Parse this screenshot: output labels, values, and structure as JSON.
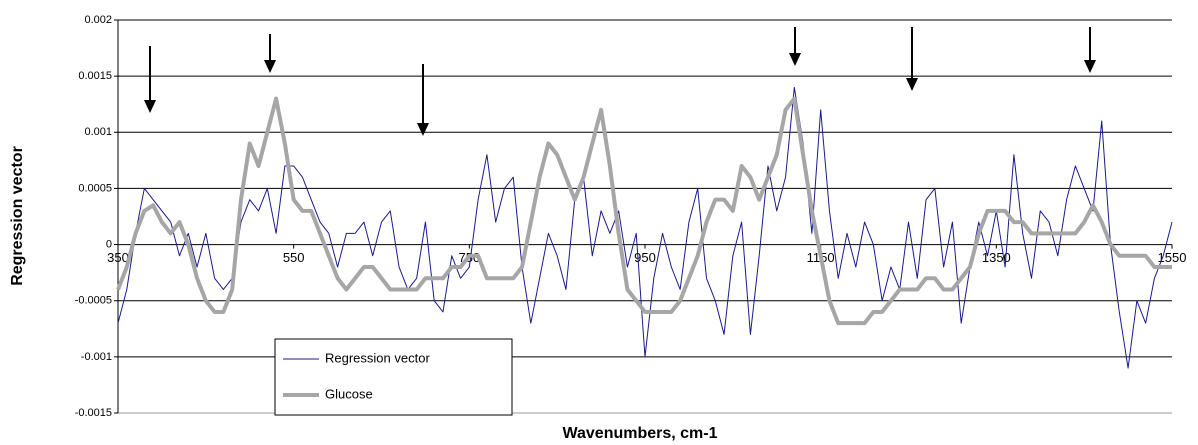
{
  "chart_data": {
    "type": "line",
    "x_label": "Wavenumbers, cm-1",
    "y_label": "Regression vector",
    "x": [
      350,
      360,
      370,
      380,
      390,
      400,
      410,
      420,
      430,
      440,
      450,
      460,
      470,
      480,
      490,
      500,
      510,
      520,
      530,
      540,
      550,
      560,
      570,
      580,
      590,
      600,
      610,
      620,
      630,
      640,
      650,
      660,
      670,
      680,
      690,
      700,
      710,
      720,
      730,
      740,
      750,
      760,
      770,
      780,
      790,
      800,
      810,
      820,
      830,
      840,
      850,
      860,
      870,
      880,
      890,
      900,
      910,
      920,
      930,
      940,
      950,
      960,
      970,
      980,
      990,
      1000,
      1010,
      1020,
      1030,
      1040,
      1050,
      1060,
      1070,
      1080,
      1090,
      1100,
      1110,
      1120,
      1130,
      1140,
      1150,
      1160,
      1170,
      1180,
      1190,
      1200,
      1210,
      1220,
      1230,
      1240,
      1250,
      1260,
      1270,
      1280,
      1290,
      1300,
      1310,
      1320,
      1330,
      1340,
      1350,
      1360,
      1370,
      1380,
      1390,
      1400,
      1410,
      1420,
      1430,
      1440,
      1450,
      1460,
      1470,
      1480,
      1490,
      1500,
      1510,
      1520,
      1530,
      1540,
      1550
    ],
    "series": [
      {
        "name": "Regression vector",
        "color": "#1a1a8c",
        "width": 1,
        "values": [
          -0.0007,
          -0.0004,
          0.0001,
          0.0005,
          0.0004,
          0.0003,
          0.0002,
          -0.0001,
          0.0001,
          -0.0002,
          0.0001,
          -0.0003,
          -0.0004,
          -0.0003,
          0.0002,
          0.0004,
          0.0003,
          0.0005,
          0.0001,
          0.0007,
          0.0007,
          0.0006,
          0.0004,
          0.0002,
          0.0001,
          -0.0002,
          0.0001,
          0.0001,
          0.0002,
          -0.0001,
          0.0002,
          0.0003,
          -0.0002,
          -0.0004,
          -0.0003,
          0.0002,
          -0.0005,
          -0.0006,
          -0.0001,
          -0.0003,
          -0.0002,
          0.0004,
          0.0008,
          0.0002,
          0.0005,
          0.0006,
          -0.0002,
          -0.0007,
          -0.0003,
          0.0001,
          -0.0001,
          -0.0004,
          0.0004,
          0.0006,
          -0.0001,
          0.0003,
          0.0001,
          0.0003,
          -0.0002,
          0.0001,
          -0.001,
          -0.0003,
          0.0001,
          -0.0002,
          -0.0004,
          0.0002,
          0.0005,
          -0.0003,
          -0.0005,
          -0.0008,
          -0.0001,
          0.0002,
          -0.0008,
          -0.0001,
          0.0007,
          0.0003,
          0.0006,
          0.0014,
          0.0009,
          0.0001,
          0.0012,
          0.0003,
          -0.0003,
          0.0001,
          -0.0002,
          0.0002,
          0,
          -0.0005,
          -0.0002,
          -0.0004,
          0.0002,
          -0.0003,
          0.0004,
          0.0005,
          -0.0002,
          0.0002,
          -0.0007,
          -0.0002,
          0.0002,
          -0.0001,
          0.0003,
          -0.0002,
          0.0008,
          0.0001,
          -0.0003,
          0.0003,
          0.0002,
          -0.0001,
          0.0004,
          0.0007,
          0.0005,
          0.0003,
          0.0011,
          0,
          -0.0006,
          -0.0011,
          -0.0005,
          -0.0007,
          -0.0003,
          -0.0001,
          0.0002
        ]
      },
      {
        "name": "Glucose",
        "color": "#a6a6a6",
        "width": 4,
        "values": [
          -0.0004,
          -0.0002,
          0.0001,
          0.0003,
          0.00035,
          0.0002,
          0.0001,
          0.0002,
          0,
          -0.0003,
          -0.0005,
          -0.0006,
          -0.0006,
          -0.0004,
          0.0004,
          0.0009,
          0.0007,
          0.001,
          0.0013,
          0.0009,
          0.0004,
          0.0003,
          0.0003,
          0.0001,
          -0.0001,
          -0.0003,
          -0.0004,
          -0.0003,
          -0.0002,
          -0.0002,
          -0.0003,
          -0.0004,
          -0.0004,
          -0.0004,
          -0.0004,
          -0.0003,
          -0.0003,
          -0.0003,
          -0.0002,
          -0.0002,
          -0.0001,
          -0.0001,
          -0.0003,
          -0.0003,
          -0.0003,
          -0.0003,
          -0.0002,
          0.0002,
          0.0006,
          0.0009,
          0.0008,
          0.0006,
          0.0004,
          0.0006,
          0.0009,
          0.0012,
          0.0007,
          0.0001,
          -0.0004,
          -0.0005,
          -0.0006,
          -0.0006,
          -0.0006,
          -0.0006,
          -0.0005,
          -0.0003,
          -0.0001,
          0.0002,
          0.0004,
          0.0004,
          0.0003,
          0.0007,
          0.0006,
          0.0004,
          0.0006,
          0.0008,
          0.0012,
          0.0013,
          0.0008,
          0.0003,
          -0.0001,
          -0.0005,
          -0.0007,
          -0.0007,
          -0.0007,
          -0.0007,
          -0.0006,
          -0.0006,
          -0.0005,
          -0.0004,
          -0.0004,
          -0.0004,
          -0.0003,
          -0.0003,
          -0.0004,
          -0.0004,
          -0.0003,
          -0.0002,
          0.0001,
          0.0003,
          0.0003,
          0.0003,
          0.0002,
          0.0002,
          0.0001,
          0.0001,
          0.0001,
          0.0001,
          0.0001,
          0.0001,
          0.0002,
          0.00035,
          0.0002,
          0,
          -0.0001,
          -0.0001,
          -0.0001,
          -0.0001,
          -0.0002,
          -0.0002,
          -0.0002
        ]
      }
    ],
    "xlim": [
      350,
      1550
    ],
    "xticks": [
      350,
      550,
      750,
      950,
      1150,
      1350,
      1550
    ],
    "ylim": [
      -0.0015,
      0.002
    ],
    "yticks": [
      -0.0015,
      -0.001,
      -0.0005,
      0,
      0.0005,
      0.001,
      0.0015,
      0.002
    ],
    "grid": true,
    "legend": "lower left"
  }
}
